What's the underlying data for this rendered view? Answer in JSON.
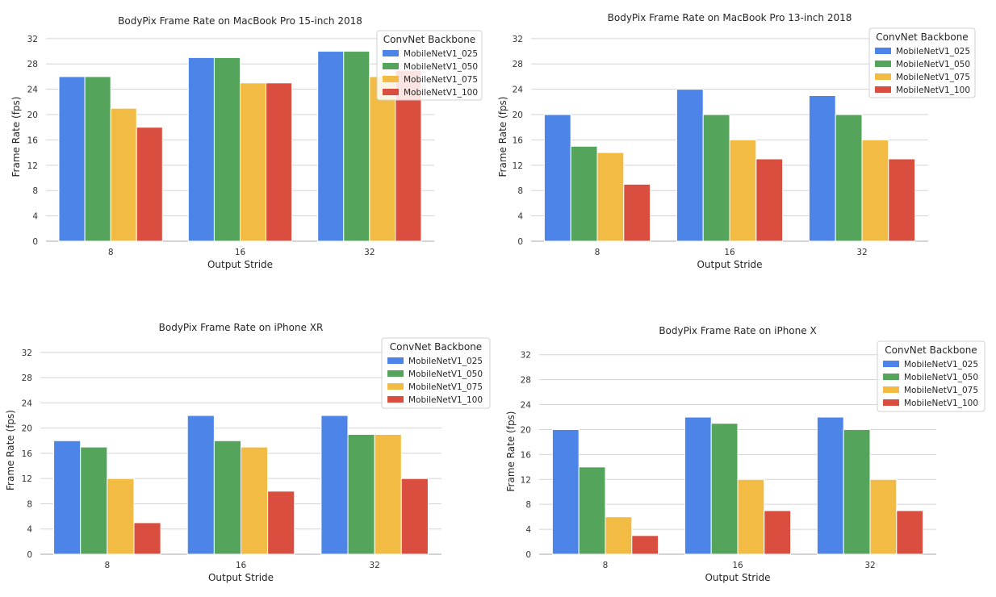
{
  "chart_data": [
    {
      "type": "bar",
      "title": "BodyPix Frame Rate on MacBook Pro 15-inch 2018",
      "xlabel": "Output Stride",
      "ylabel": "Frame Rate (fps)",
      "categories": [
        "8",
        "16",
        "32"
      ],
      "yticks": [
        "0",
        "4",
        "8",
        "12",
        "16",
        "20",
        "24",
        "28",
        "32"
      ],
      "ylim": [
        0,
        33
      ],
      "legend_title": "ConvNet Backbone",
      "legend_position": "top-right",
      "grid": true,
      "series": [
        {
          "name": "MobileNetV1_025",
          "values": [
            26,
            29,
            30
          ]
        },
        {
          "name": "MobileNetV1_050",
          "values": [
            26,
            29,
            30
          ]
        },
        {
          "name": "MobileNetV1_075",
          "values": [
            21,
            25,
            26
          ]
        },
        {
          "name": "MobileNetV1_100",
          "values": [
            18,
            25,
            27
          ]
        }
      ]
    },
    {
      "type": "bar",
      "title": "BodyPix Frame Rate on MacBook Pro 13-inch 2018",
      "xlabel": "Output Stride",
      "ylabel": "Frame Rate (fps)",
      "categories": [
        "8",
        "16",
        "32"
      ],
      "yticks": [
        "0",
        "4",
        "8",
        "12",
        "16",
        "20",
        "24",
        "28",
        "32"
      ],
      "ylim": [
        0,
        33
      ],
      "legend_title": "ConvNet Backbone",
      "legend_position": "top-right",
      "grid": true,
      "series": [
        {
          "name": "MobileNetV1_025",
          "values": [
            20,
            24,
            23
          ]
        },
        {
          "name": "MobileNetV1_050",
          "values": [
            15,
            20,
            20
          ]
        },
        {
          "name": "MobileNetV1_075",
          "values": [
            14,
            16,
            16
          ]
        },
        {
          "name": "MobileNetV1_100",
          "values": [
            9,
            13,
            13
          ]
        }
      ]
    },
    {
      "type": "bar",
      "title": "BodyPix Frame Rate on iPhone XR",
      "xlabel": "Output Stride",
      "ylabel": "Frame Rate (fps)",
      "categories": [
        "8",
        "16",
        "32"
      ],
      "yticks": [
        "0",
        "4",
        "8",
        "12",
        "16",
        "20",
        "24",
        "28",
        "32"
      ],
      "ylim": [
        0,
        33
      ],
      "legend_title": "ConvNet Backbone",
      "legend_position": "top-right",
      "grid": true,
      "series": [
        {
          "name": "MobileNetV1_025",
          "values": [
            18,
            22,
            22
          ]
        },
        {
          "name": "MobileNetV1_050",
          "values": [
            17,
            18,
            19
          ]
        },
        {
          "name": "MobileNetV1_075",
          "values": [
            12,
            17,
            19
          ]
        },
        {
          "name": "MobileNetV1_100",
          "values": [
            5,
            10,
            12
          ]
        }
      ]
    },
    {
      "type": "bar",
      "title": "BodyPix Frame Rate on iPhone X",
      "xlabel": "Output Stride",
      "ylabel": "Frame Rate (fps)",
      "categories": [
        "8",
        "16",
        "32"
      ],
      "yticks": [
        "0",
        "4",
        "8",
        "12",
        "16",
        "20",
        "24",
        "28",
        "32"
      ],
      "ylim": [
        0,
        33
      ],
      "legend_title": "ConvNet Backbone",
      "legend_position": "top-right",
      "grid": true,
      "series": [
        {
          "name": "MobileNetV1_025",
          "values": [
            20,
            22,
            22
          ]
        },
        {
          "name": "MobileNetV1_050",
          "values": [
            14,
            21,
            20
          ]
        },
        {
          "name": "MobileNetV1_075",
          "values": [
            6,
            12,
            12
          ]
        },
        {
          "name": "MobileNetV1_100",
          "values": [
            3,
            7,
            7
          ]
        }
      ]
    }
  ],
  "colors": {
    "MobileNetV1_025": "#4c84e8",
    "MobileNetV1_050": "#54a45c",
    "MobileNetV1_075": "#f2bc44",
    "MobileNetV1_100": "#da4e40",
    "grid": "#d3d3d3",
    "axis": "#a8a8a8"
  }
}
